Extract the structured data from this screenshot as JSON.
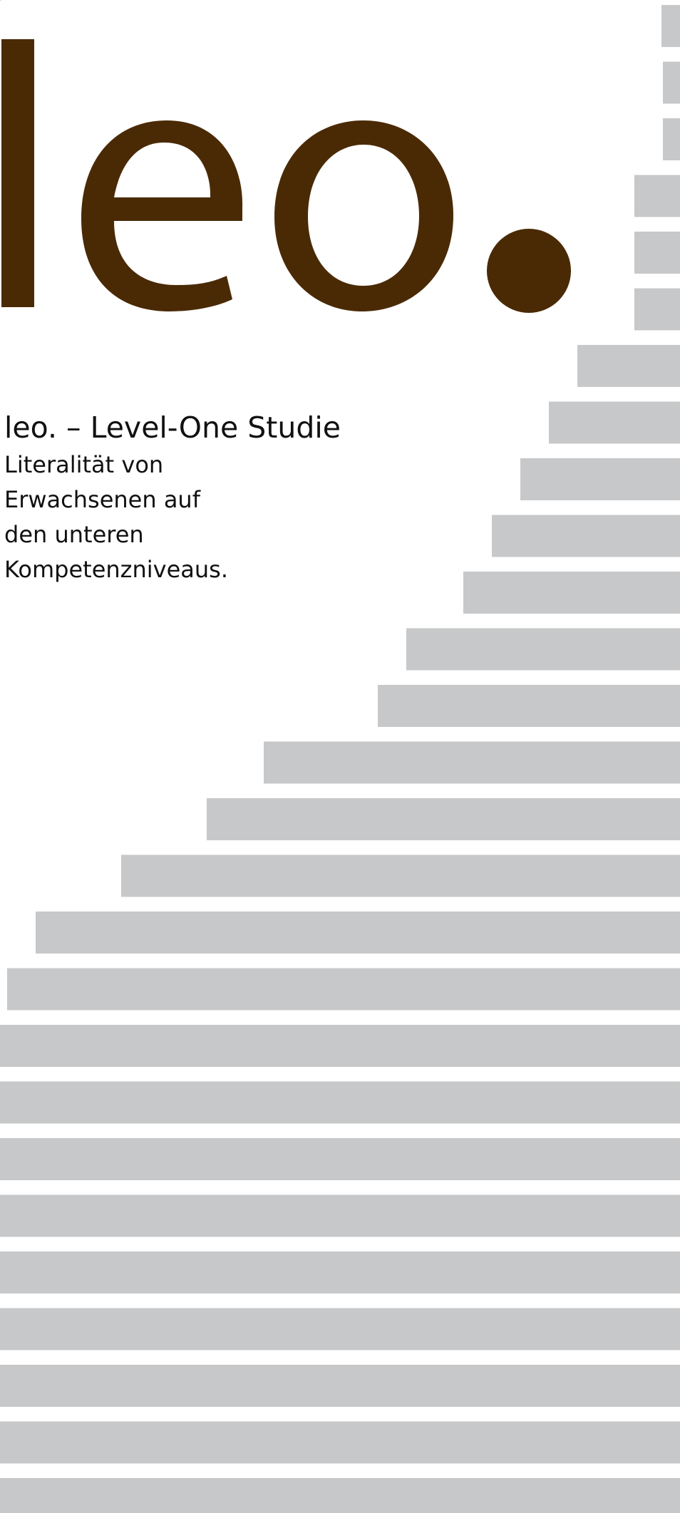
{
  "logo": {
    "text": "leo.",
    "color": "#4a2a05"
  },
  "subtitle": {
    "title": "leo. – Level-One Studie",
    "lines": [
      "Literalität von",
      "Erwachsenen auf",
      "den unteren",
      "Kompetenzniveaus."
    ]
  },
  "bar_color": "#c7c8ca"
}
